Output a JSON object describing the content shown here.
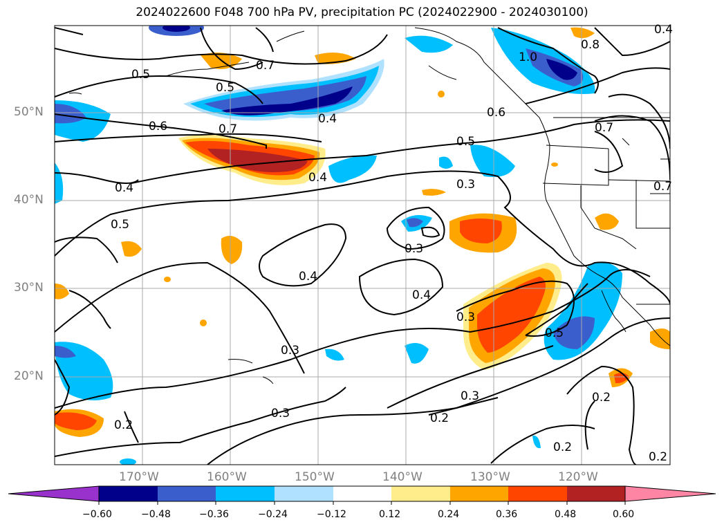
{
  "title": "2024022600 F048 700 hPa PV, precipitation PC (2024022900 - 2024030100)",
  "lat_labels": [
    "50°N",
    "40°N",
    "30°N",
    "20°N"
  ],
  "lon_labels": [
    "170°W",
    "160°W",
    "150°W",
    "140°W",
    "130°W",
    "120°W"
  ],
  "contour_labels": [
    "0.5",
    "0.5",
    "0.6",
    "0.7",
    "0.7",
    "0.4",
    "0.4",
    "0.4",
    "0.5",
    "0.5",
    "0.6",
    "1.0",
    "0.8",
    "0.3",
    "0.3",
    "0.4",
    "0.4",
    "0.3",
    "0.3",
    "0.3",
    "0.5",
    "0.2",
    "0.2",
    "0.2",
    "0.2",
    "0.3",
    "0.2",
    "0.7",
    "0.4",
    "0.7"
  ],
  "colorbar": {
    "ticks": [
      "−0.60",
      "−0.48",
      "−0.36",
      "−0.24",
      "−0.12",
      "0.12",
      "0.24",
      "0.36",
      "0.48",
      "0.60"
    ],
    "colors": [
      "#9932cc",
      "#00008b",
      "#3a5fcd",
      "#00bfff",
      "#b0e2ff",
      "#ffffff",
      "#ffec8b",
      "#ffa500",
      "#ff4500",
      "#b22222",
      "#ff85a5"
    ]
  }
}
